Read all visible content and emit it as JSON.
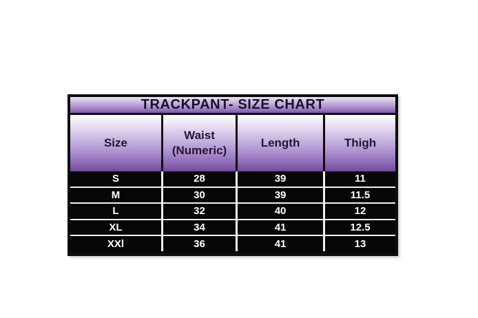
{
  "page": {
    "background": "#ffffff"
  },
  "chart_data": {
    "type": "table",
    "title": "TRACKPANT- SIZE CHART",
    "columns": [
      "Size",
      "Waist (Numeric)",
      "Length",
      "Thigh"
    ],
    "rows": [
      [
        "S",
        "28",
        "39",
        "11"
      ],
      [
        "M",
        "30",
        "39",
        "11.5"
      ],
      [
        "L",
        "32",
        "40",
        "12"
      ],
      [
        "XL",
        "34",
        "41",
        "12.5"
      ],
      [
        "XXl",
        "36",
        "41",
        "13"
      ]
    ],
    "layout_hints": {
      "title_background": "purple vertical gradient",
      "header_background": "white-to-purple vertical gradient",
      "data_row_background": "black",
      "data_text_color": "white"
    }
  },
  "colors": {
    "border_black": "#0d0d0d",
    "row_background": "#060606",
    "row_text": "#ffffff",
    "header_text": "#241537",
    "title_text": "#170f2b",
    "gradient_top": "#f6f2fb",
    "gradient_mid": "#b297d3",
    "gradient_bottom": "#7e57a8",
    "separator_white": "#f2f2f2"
  }
}
